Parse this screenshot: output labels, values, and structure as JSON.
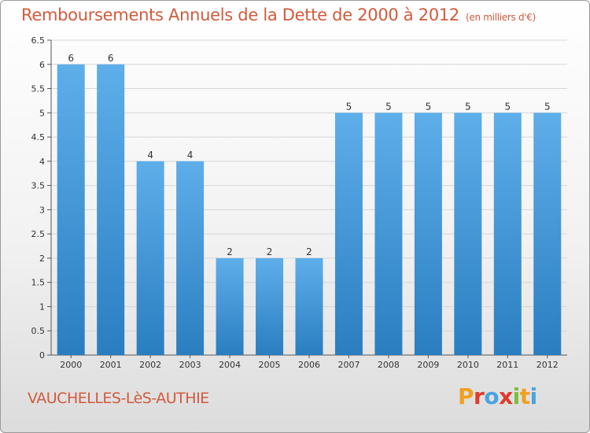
{
  "header": {
    "title": "Remboursements Annuels de la Dette de 2000 à 2012",
    "unit": "(en milliers d'€)"
  },
  "footer": {
    "commune": "VAUCHELLES-LèS-AUTHIE",
    "logo_text": "Proxiti"
  },
  "colors": {
    "bar_top": "#5eaeea",
    "bar_bottom": "#2a7ec0",
    "title": "#d25a3c",
    "logo_letters": [
      "#f0a020",
      "#e03a2a",
      "#4aa3df",
      "#e03a2a",
      "#7bbf3a",
      "#f0a020",
      "#4aa3df"
    ]
  },
  "chart_data": {
    "type": "bar",
    "categories": [
      "2000",
      "2001",
      "2002",
      "2003",
      "2004",
      "2005",
      "2006",
      "2007",
      "2008",
      "2009",
      "2010",
      "2011",
      "2012"
    ],
    "values": [
      6,
      6,
      4,
      4,
      2,
      2,
      2,
      5,
      5,
      5,
      5,
      5,
      5
    ],
    "data_labels": [
      "6",
      "6",
      "4",
      "4",
      "2",
      "2",
      "2",
      "5",
      "5",
      "5",
      "5",
      "5",
      "5"
    ],
    "yticks": [
      0,
      0.5,
      1,
      1.5,
      2,
      2.5,
      3,
      3.5,
      4,
      4.5,
      5,
      5.5,
      6,
      6.5
    ],
    "ytick_labels": [
      "0",
      "0.5",
      "1",
      "1.5",
      "2",
      "2.5",
      "3",
      "3.5",
      "4",
      "4.5",
      "5",
      "5.5",
      "6",
      "6.5"
    ],
    "ylim": [
      0,
      6.5
    ],
    "grid": true,
    "legend": "none",
    "title": "Remboursements Annuels de la Dette de 2000 à 2012"
  }
}
